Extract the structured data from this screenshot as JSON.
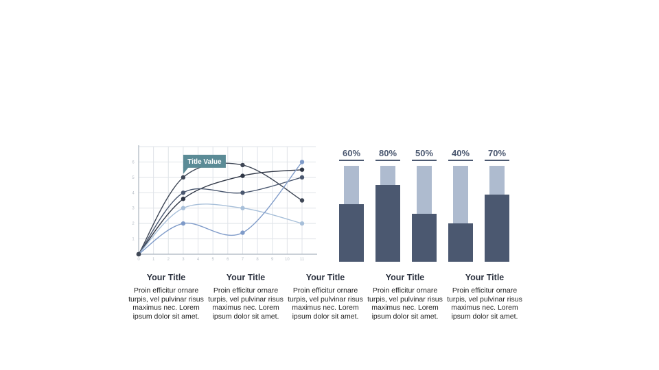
{
  "colors": {
    "grid": "#dfe3e8",
    "axis": "#aab3bf",
    "bar_dark": "#4b5870",
    "bar_light": "#aebbcf",
    "callout": "#5b8b96",
    "series": [
      "#3f4756",
      "#2f3645",
      "#4b5870",
      "#a7bfd9",
      "#7f9bc9",
      "#8bb0de"
    ]
  },
  "chart_data": [
    {
      "type": "line",
      "x": [
        0,
        3,
        7,
        11
      ],
      "xlim": [
        0,
        11
      ],
      "ylim": [
        0,
        7
      ],
      "x_ticks": [
        "0",
        "1",
        "2",
        "3",
        "4",
        "5",
        "6",
        "7",
        "8",
        "9",
        "10",
        "11"
      ],
      "y_ticks": [
        "1",
        "2",
        "3",
        "4",
        "5",
        "6"
      ],
      "grid": true,
      "annotation": {
        "text": "Title Value",
        "x": 3,
        "y": 5
      },
      "series": [
        {
          "values": [
            0,
            5.0,
            5.8,
            3.5
          ]
        },
        {
          "values": [
            0,
            3.6,
            5.1,
            5.5
          ]
        },
        {
          "values": [
            0,
            4.0,
            4.0,
            5.0
          ]
        },
        {
          "values": [
            0,
            3.0,
            3.0,
            2.0
          ]
        },
        {
          "values": [
            0,
            2.0,
            1.4,
            6.0
          ]
        }
      ]
    },
    {
      "type": "bar",
      "categories": [
        "60%",
        "80%",
        "50%",
        "40%",
        "70%"
      ],
      "values": [
        60,
        80,
        50,
        40,
        70
      ],
      "ylim": [
        0,
        100
      ]
    }
  ],
  "captions": [
    {
      "title": "Your Title",
      "body": "Proin efficitur ornare turpis, vel pulvinar risus maximus nec. Lorem ipsum dolor sit amet."
    },
    {
      "title": "Your Title",
      "body": "Proin efficitur ornare turpis, vel pulvinar risus maximus nec. Lorem ipsum dolor sit amet."
    },
    {
      "title": "Your Title",
      "body": "Proin efficitur ornare turpis, vel pulvinar risus maximus nec. Lorem ipsum dolor sit amet."
    },
    {
      "title": "Your Title",
      "body": "Proin efficitur ornare turpis, vel pulvinar risus maximus nec. Lorem ipsum dolor sit amet."
    },
    {
      "title": "Your Title",
      "body": "Proin efficitur ornare turpis, vel pulvinar risus maximus nec. Lorem ipsum dolor sit amet."
    }
  ]
}
